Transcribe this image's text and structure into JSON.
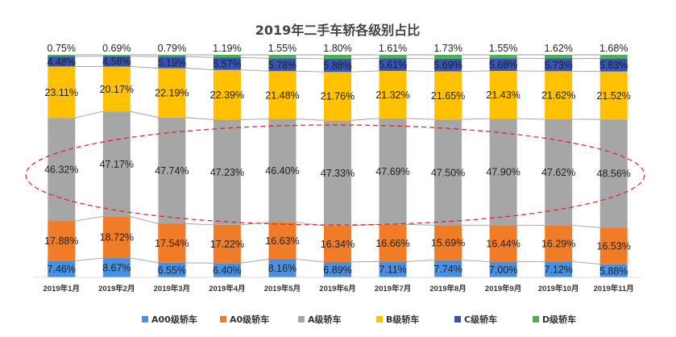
{
  "chart_data": {
    "type": "bar",
    "stacked": true,
    "percent_stacked": true,
    "title": "2019年二手车轿各级别占比",
    "categories": [
      "2019年1月",
      "2019年2月",
      "2019年3月",
      "2019年4月",
      "2019年5月",
      "2019年6月",
      "2019年7月",
      "2019年8月",
      "2019年9月",
      "2019年10月",
      "2019年11月"
    ],
    "series": [
      {
        "name": "A00级轿车",
        "color": "#4a90e2",
        "values": [
          7.46,
          8.67,
          6.55,
          6.4,
          8.16,
          6.89,
          7.11,
          7.74,
          7.0,
          7.12,
          5.88
        ],
        "labels": [
          "7.46%",
          "8.67%",
          "6.55%",
          "6.40%",
          "8.16%",
          "6.89%",
          "7.11%",
          "7.74%",
          "7.00%",
          "7.12%",
          "5.88%"
        ]
      },
      {
        "name": "A0级轿车",
        "color": "#f07c28",
        "values": [
          17.88,
          18.72,
          17.54,
          17.22,
          16.63,
          16.34,
          16.66,
          15.69,
          16.44,
          16.29,
          16.53
        ],
        "labels": [
          "17.88%",
          "18.72%",
          "17.54%",
          "17.22%",
          "16.63%",
          "16.34%",
          "16.66%",
          "15.69%",
          "16.44%",
          "16.29%",
          "16.53%"
        ]
      },
      {
        "name": "A级轿车",
        "color": "#a6a6a6",
        "values": [
          46.32,
          47.17,
          47.74,
          47.23,
          46.4,
          47.33,
          47.69,
          47.5,
          47.9,
          47.62,
          48.56
        ],
        "labels": [
          "46.32%",
          "47.17%",
          "47.74%",
          "47.23%",
          "46.40%",
          "47.33%",
          "47.69%",
          "47.50%",
          "47.90%",
          "47.62%",
          "48.56%"
        ]
      },
      {
        "name": "B级轿车",
        "color": "#ffc000",
        "values": [
          23.11,
          20.17,
          22.19,
          22.39,
          21.48,
          21.76,
          21.32,
          21.65,
          21.43,
          21.62,
          21.52
        ],
        "labels": [
          "23.11%",
          "20.17%",
          "22.19%",
          "22.39%",
          "21.48%",
          "21.76%",
          "21.32%",
          "21.65%",
          "21.43%",
          "21.62%",
          "21.52%"
        ]
      },
      {
        "name": "C级轿车",
        "color": "#3653b5",
        "values": [
          4.48,
          4.58,
          5.19,
          5.57,
          5.78,
          5.88,
          5.61,
          5.69,
          5.68,
          5.73,
          5.83
        ],
        "labels": [
          "4.48%",
          "4.58%",
          "5.19%",
          "5.57%",
          "5.78%",
          "5.88%",
          "5.61%",
          "5.69%",
          "5.68%",
          "5.73%",
          "5.83%"
        ]
      },
      {
        "name": "D级轿车",
        "color": "#4caf50",
        "values": [
          0.75,
          0.69,
          0.79,
          1.19,
          1.55,
          1.8,
          1.61,
          1.73,
          1.55,
          1.62,
          1.68
        ],
        "labels": [
          "0.75%",
          "0.69%",
          "0.79%",
          "1.19%",
          "1.55%",
          "1.80%",
          "1.61%",
          "1.73%",
          "1.55%",
          "1.62%",
          "1.68%"
        ]
      }
    ],
    "series_lines": true,
    "highlight_ellipse": {
      "series": "A级轿车",
      "style": "red-dashed"
    },
    "legend_position": "bottom",
    "grid": false,
    "ylim": [
      0,
      100
    ]
  }
}
